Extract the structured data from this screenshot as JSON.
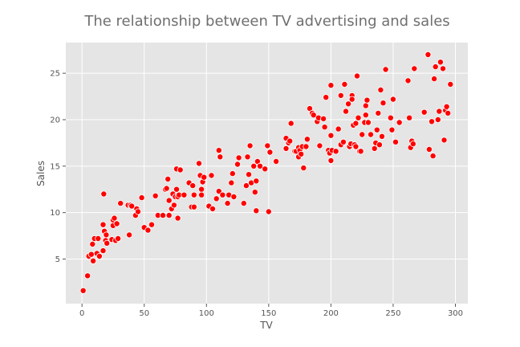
{
  "chart_data": {
    "type": "scatter",
    "title": "The relationship between TV advertising and sales",
    "xlabel": "TV",
    "ylabel": "Sales",
    "xlim": [
      -13,
      310
    ],
    "ylim": [
      0.2,
      28.3
    ],
    "xticks": [
      0,
      50,
      100,
      150,
      200,
      250,
      300
    ],
    "yticks": [
      5,
      10,
      15,
      20,
      25
    ],
    "grid": true,
    "colors": {
      "background": "#e5e5e5",
      "grid": "#ffffff",
      "marker_fill": "#ff0000",
      "marker_edge": "#ffffff",
      "tick_mark": "#555555"
    },
    "points": [
      [
        1,
        1.6
      ],
      [
        4.5,
        3.2
      ],
      [
        5.5,
        5.3
      ],
      [
        7.5,
        5.5
      ],
      [
        8.5,
        6.6
      ],
      [
        9,
        4.8
      ],
      [
        10,
        7.2
      ],
      [
        12,
        5.6
      ],
      [
        13,
        7.2
      ],
      [
        14,
        5.3
      ],
      [
        17,
        5.9
      ],
      [
        17,
        8.7
      ],
      [
        17.5,
        12
      ],
      [
        18,
        8.0
      ],
      [
        19.5,
        7.6
      ],
      [
        19,
        7.0
      ],
      [
        20,
        6.7
      ],
      [
        24,
        7.1
      ],
      [
        25,
        8.6
      ],
      [
        25,
        9.2
      ],
      [
        26,
        9.4
      ],
      [
        27,
        7.0
      ],
      [
        28,
        8.8
      ],
      [
        29,
        7.2
      ],
      [
        31,
        11
      ],
      [
        37,
        10.8
      ],
      [
        38,
        7.6
      ],
      [
        39,
        10.8
      ],
      [
        40,
        10.7
      ],
      [
        43,
        9.7
      ],
      [
        44,
        10.4
      ],
      [
        45,
        10.1
      ],
      [
        48,
        11.6
      ],
      [
        50,
        8.4
      ],
      [
        53,
        8.1
      ],
      [
        56,
        8.7
      ],
      [
        59,
        11.8
      ],
      [
        61,
        9.7
      ],
      [
        65,
        9.7
      ],
      [
        67,
        12.5
      ],
      [
        68,
        12.6
      ],
      [
        69,
        13.6
      ],
      [
        70,
        9.7
      ],
      [
        70,
        11.3
      ],
      [
        72,
        10.4
      ],
      [
        73,
        12.0
      ],
      [
        74,
        10.8
      ],
      [
        75,
        11.7
      ],
      [
        76,
        12.5
      ],
      [
        76,
        14.7
      ],
      [
        77,
        9.4
      ],
      [
        77,
        11.7
      ],
      [
        78,
        11.9
      ],
      [
        79,
        14.6
      ],
      [
        82,
        11.9
      ],
      [
        86,
        13.2
      ],
      [
        88,
        10.6
      ],
      [
        89,
        12.9
      ],
      [
        90,
        10.6
      ],
      [
        90,
        11.9
      ],
      [
        94,
        15.3
      ],
      [
        95,
        14.0
      ],
      [
        96,
        12.5
      ],
      [
        96,
        11.9
      ],
      [
        97,
        13.3
      ],
      [
        98,
        13.8
      ],
      [
        102,
        10.7
      ],
      [
        104,
        14.0
      ],
      [
        105,
        10.4
      ],
      [
        108,
        11.5
      ],
      [
        110,
        16.7
      ],
      [
        110,
        12.3
      ],
      [
        111,
        16.0
      ],
      [
        113,
        11.9
      ],
      [
        117,
        11.0
      ],
      [
        118,
        11.9
      ],
      [
        120,
        13.2
      ],
      [
        121,
        14.2
      ],
      [
        122,
        11.7
      ],
      [
        125,
        15.2
      ],
      [
        126,
        15.9
      ],
      [
        130,
        11.0
      ],
      [
        132,
        12.9
      ],
      [
        133,
        16.0
      ],
      [
        134,
        14.1
      ],
      [
        135,
        17.2
      ],
      [
        136,
        13.2
      ],
      [
        138,
        15.0
      ],
      [
        139,
        12.2
      ],
      [
        140,
        10.2
      ],
      [
        140,
        13.4
      ],
      [
        141,
        15.5
      ],
      [
        143,
        15.0
      ],
      [
        147,
        14.7
      ],
      [
        149,
        17.2
      ],
      [
        150,
        10.1
      ],
      [
        151,
        16.5
      ],
      [
        156,
        15.5
      ],
      [
        164,
        16.9
      ],
      [
        164,
        18.0
      ],
      [
        166,
        17.5
      ],
      [
        167,
        17.7
      ],
      [
        168,
        19.6
      ],
      [
        171,
        16.6
      ],
      [
        172,
        16.6
      ],
      [
        174,
        17.0
      ],
      [
        174,
        16.0
      ],
      [
        175,
        16.7
      ],
      [
        176,
        16.3
      ],
      [
        177,
        17.1
      ],
      [
        178,
        14.8
      ],
      [
        180,
        17.1
      ],
      [
        181,
        17.9
      ],
      [
        183,
        21.2
      ],
      [
        185,
        20.7
      ],
      [
        186,
        20.5
      ],
      [
        189,
        19.8
      ],
      [
        190,
        20.2
      ],
      [
        191,
        17.2
      ],
      [
        194,
        20.1
      ],
      [
        195,
        19.2
      ],
      [
        196,
        22.4
      ],
      [
        198,
        16.7
      ],
      [
        199,
        16.4
      ],
      [
        200,
        23.7
      ],
      [
        200,
        18.3
      ],
      [
        200,
        15.6
      ],
      [
        201,
        16.7
      ],
      [
        204,
        16.6
      ],
      [
        206,
        19.0
      ],
      [
        208,
        22.6
      ],
      [
        208,
        17.3
      ],
      [
        210,
        17.6
      ],
      [
        211,
        23.8
      ],
      [
        212,
        20.9
      ],
      [
        214,
        21.7
      ],
      [
        215,
        17.1
      ],
      [
        216,
        17.4
      ],
      [
        217,
        22.6
      ],
      [
        217,
        22.2
      ],
      [
        218,
        19.4
      ],
      [
        219,
        17.3
      ],
      [
        220,
        19.6
      ],
      [
        220,
        17.1
      ],
      [
        221,
        24.7
      ],
      [
        222,
        20.2
      ],
      [
        223,
        16.6
      ],
      [
        224,
        16.6
      ],
      [
        225,
        18.4
      ],
      [
        227,
        19.7
      ],
      [
        228,
        21.5
      ],
      [
        228,
        20.5
      ],
      [
        229,
        22.1
      ],
      [
        230,
        19.7
      ],
      [
        232,
        18.4
      ],
      [
        235,
        16.9
      ],
      [
        236,
        17.5
      ],
      [
        237,
        18.9
      ],
      [
        238,
        20.7
      ],
      [
        239,
        17.3
      ],
      [
        240,
        23.2
      ],
      [
        241,
        18.2
      ],
      [
        242,
        21.8
      ],
      [
        244,
        25.4
      ],
      [
        248,
        20.2
      ],
      [
        249,
        18.9
      ],
      [
        250,
        22.2
      ],
      [
        252,
        17.6
      ],
      [
        255,
        19.7
      ],
      [
        262,
        24.2
      ],
      [
        263,
        20.2
      ],
      [
        264,
        17.0
      ],
      [
        265,
        17.7
      ],
      [
        266,
        17.4
      ],
      [
        267,
        25.5
      ],
      [
        275,
        20.8
      ],
      [
        278,
        27.0
      ],
      [
        279,
        16.8
      ],
      [
        281,
        19.8
      ],
      [
        282,
        16.1
      ],
      [
        283,
        24.4
      ],
      [
        284,
        25.7
      ],
      [
        286,
        20.0
      ],
      [
        287,
        20.9
      ],
      [
        288,
        26.2
      ],
      [
        290,
        25.5
      ],
      [
        291,
        17.8
      ],
      [
        292,
        21.0
      ],
      [
        293,
        21.4
      ],
      [
        294,
        20.7
      ],
      [
        296,
        23.8
      ]
    ]
  }
}
